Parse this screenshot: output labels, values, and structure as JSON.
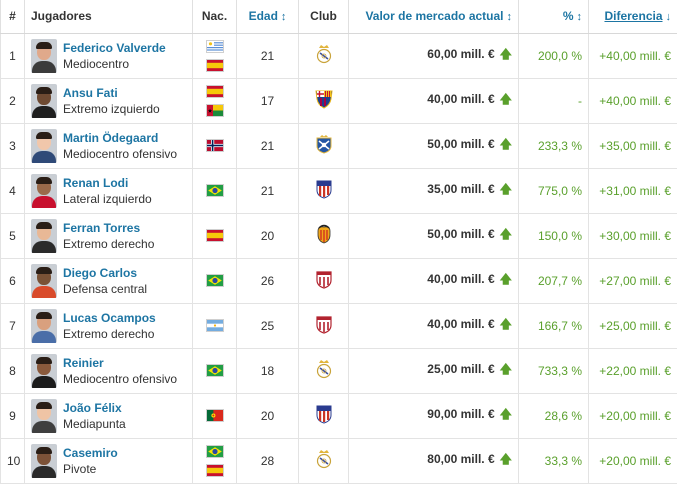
{
  "columns": {
    "num": "#",
    "player": "Jugadores",
    "nat": "Nac.",
    "age": "Edad",
    "club": "Club",
    "value": "Valor de mercado actual",
    "pct": "%",
    "diff": "Diferencia"
  },
  "sort_icons": {
    "age": "↕",
    "value": "↕",
    "pct": "↕",
    "diff": "↓"
  },
  "up_arrow": "🡅",
  "rows": [
    {
      "num": "1",
      "name": "Federico Valverde",
      "position": "Mediocentro",
      "flags": [
        "uruguay-flag",
        "spain-flag"
      ],
      "age": "21",
      "club": "real-madrid-crest",
      "value": "60,00 mill. €",
      "pct": "200,0 %",
      "diff": "+40,00 mill. €"
    },
    {
      "num": "2",
      "name": "Ansu Fati",
      "position": "Extremo izquierdo",
      "flags": [
        "spain-flag",
        "guinea-bissau-flag"
      ],
      "age": "17",
      "club": "barcelona-crest",
      "value": "40,00 mill. €",
      "pct": "-",
      "diff": "+40,00 mill. €"
    },
    {
      "num": "3",
      "name": "Martin Ödegaard",
      "position": "Mediocentro ofensivo",
      "flags": [
        "norway-flag"
      ],
      "age": "21",
      "club": "real-sociedad-crest",
      "value": "50,00 mill. €",
      "pct": "233,3 %",
      "diff": "+35,00 mill. €"
    },
    {
      "num": "4",
      "name": "Renan Lodi",
      "position": "Lateral izquierdo",
      "flags": [
        "brazil-flag"
      ],
      "age": "21",
      "club": "atletico-madrid-crest",
      "value": "35,00 mill. €",
      "pct": "775,0 %",
      "diff": "+31,00 mill. €"
    },
    {
      "num": "5",
      "name": "Ferran Torres",
      "position": "Extremo derecho",
      "flags": [
        "spain-flag"
      ],
      "age": "20",
      "club": "valencia-crest",
      "value": "50,00 mill. €",
      "pct": "150,0 %",
      "diff": "+30,00 mill. €"
    },
    {
      "num": "6",
      "name": "Diego Carlos",
      "position": "Defensa central",
      "flags": [
        "brazil-flag"
      ],
      "age": "26",
      "club": "sevilla-crest",
      "value": "40,00 mill. €",
      "pct": "207,7 %",
      "diff": "+27,00 mill. €"
    },
    {
      "num": "7",
      "name": "Lucas Ocampos",
      "position": "Extremo derecho",
      "flags": [
        "argentina-flag"
      ],
      "age": "25",
      "club": "sevilla-crest",
      "value": "40,00 mill. €",
      "pct": "166,7 %",
      "diff": "+25,00 mill. €"
    },
    {
      "num": "8",
      "name": "Reinier",
      "position": "Mediocentro ofensivo",
      "flags": [
        "brazil-flag"
      ],
      "age": "18",
      "club": "real-madrid-crest",
      "value": "25,00 mill. €",
      "pct": "733,3 %",
      "diff": "+22,00 mill. €"
    },
    {
      "num": "9",
      "name": "João Félix",
      "position": "Mediapunta",
      "flags": [
        "portugal-flag"
      ],
      "age": "20",
      "club": "atletico-madrid-crest",
      "value": "90,00 mill. €",
      "pct": "28,6 %",
      "diff": "+20,00 mill. €"
    },
    {
      "num": "10",
      "name": "Casemiro",
      "position": "Pivote",
      "flags": [
        "brazil-flag",
        "spain-flag"
      ],
      "age": "28",
      "club": "real-madrid-crest",
      "value": "80,00 mill. €",
      "pct": "33,3 %",
      "diff": "+20,00 mill. €"
    }
  ],
  "colors": {
    "link": "#1d75a3",
    "positive": "#5aa02c"
  }
}
